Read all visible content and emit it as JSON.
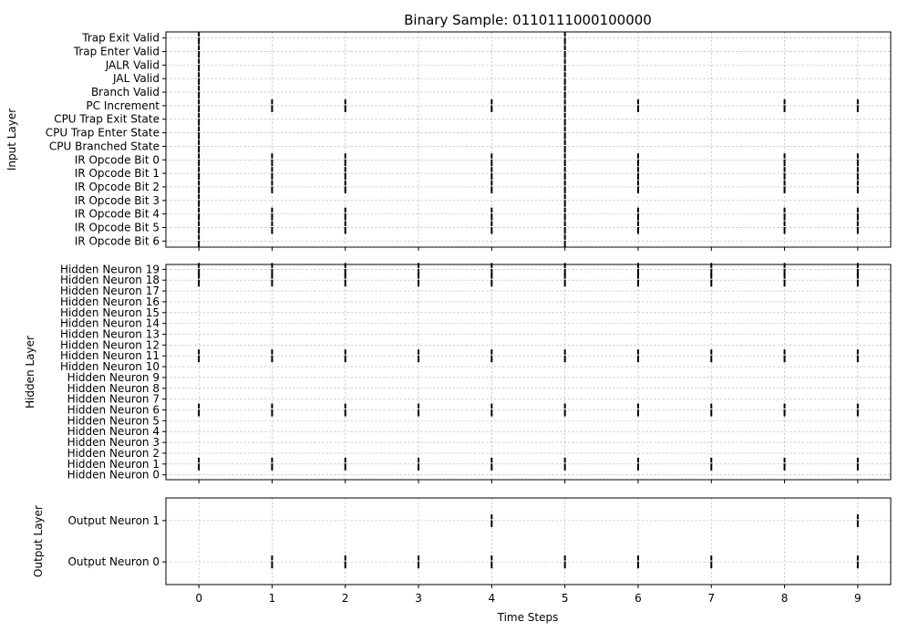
{
  "chart_data": {
    "type": "scatter",
    "title": "Binary Sample: 0110111000100000",
    "xlabel": "Time Steps",
    "x_ticks": [
      0,
      1,
      2,
      3,
      4,
      5,
      6,
      7,
      8,
      9
    ],
    "xlim": [
      -0.45,
      9.45
    ],
    "grid": true,
    "marker": "vertical-line",
    "panels": [
      {
        "name": "input",
        "ylabel": "Input Layer",
        "neurons": [
          "IR Opcode Bit 6",
          "IR Opcode Bit 5",
          "IR Opcode Bit 4",
          "IR Opcode Bit 3",
          "IR Opcode Bit 2",
          "IR Opcode Bit 1",
          "IR Opcode Bit 0",
          "CPU Branched State",
          "CPU Trap Enter State",
          "CPU Trap Exit State",
          "PC Increment",
          "Branch Valid",
          "JAL Valid",
          "JALR Valid",
          "Trap Enter Valid",
          "Trap Exit Valid"
        ],
        "ylim": [
          -0.45,
          15.45
        ],
        "spikes": [
          {
            "neuron": "IR Opcode Bit 6",
            "times": [
              0,
              5
            ]
          },
          {
            "neuron": "IR Opcode Bit 5",
            "times": [
              0,
              1,
              2,
              4,
              5,
              6,
              8,
              9
            ]
          },
          {
            "neuron": "IR Opcode Bit 4",
            "times": [
              0,
              1,
              2,
              4,
              5,
              6,
              8,
              9
            ]
          },
          {
            "neuron": "IR Opcode Bit 3",
            "times": [
              0,
              5
            ]
          },
          {
            "neuron": "IR Opcode Bit 2",
            "times": [
              0,
              1,
              2,
              4,
              5,
              6,
              8,
              9
            ]
          },
          {
            "neuron": "IR Opcode Bit 1",
            "times": [
              0,
              1,
              2,
              4,
              5,
              6,
              8,
              9
            ]
          },
          {
            "neuron": "IR Opcode Bit 0",
            "times": [
              0,
              1,
              2,
              4,
              5,
              6,
              8,
              9
            ]
          },
          {
            "neuron": "CPU Branched State",
            "times": [
              0,
              5
            ]
          },
          {
            "neuron": "CPU Trap Enter State",
            "times": [
              0,
              5
            ]
          },
          {
            "neuron": "CPU Trap Exit State",
            "times": [
              0,
              5
            ]
          },
          {
            "neuron": "PC Increment",
            "times": [
              0,
              1,
              2,
              4,
              5,
              6,
              8,
              9
            ]
          },
          {
            "neuron": "Branch Valid",
            "times": [
              0,
              5
            ]
          },
          {
            "neuron": "JAL Valid",
            "times": [
              0,
              5
            ]
          },
          {
            "neuron": "JALR Valid",
            "times": [
              0,
              5
            ]
          },
          {
            "neuron": "Trap Enter Valid",
            "times": [
              0,
              5
            ]
          },
          {
            "neuron": "Trap Exit Valid",
            "times": [
              0,
              5
            ]
          }
        ]
      },
      {
        "name": "hidden",
        "ylabel": "Hidden Layer",
        "neurons": [
          "Hidden Neuron 0",
          "Hidden Neuron 1",
          "Hidden Neuron 2",
          "Hidden Neuron 3",
          "Hidden Neuron 4",
          "Hidden Neuron 5",
          "Hidden Neuron 6",
          "Hidden Neuron 7",
          "Hidden Neuron 8",
          "Hidden Neuron 9",
          "Hidden Neuron 10",
          "Hidden Neuron 11",
          "Hidden Neuron 12",
          "Hidden Neuron 13",
          "Hidden Neuron 14",
          "Hidden Neuron 15",
          "Hidden Neuron 16",
          "Hidden Neuron 17",
          "Hidden Neuron 18",
          "Hidden Neuron 19"
        ],
        "ylim": [
          -0.45,
          19.45
        ],
        "spikes": [
          {
            "neuron": "Hidden Neuron 1",
            "times": [
              0,
              1,
              2,
              3,
              4,
              5,
              6,
              7,
              8,
              9
            ]
          },
          {
            "neuron": "Hidden Neuron 6",
            "times": [
              0,
              1,
              2,
              3,
              4,
              5,
              6,
              7,
              8,
              9
            ]
          },
          {
            "neuron": "Hidden Neuron 11",
            "times": [
              0,
              1,
              2,
              3,
              4,
              5,
              6,
              7,
              8,
              9
            ]
          },
          {
            "neuron": "Hidden Neuron 18",
            "times": [
              0,
              1,
              2,
              3,
              4,
              5,
              6,
              7,
              8,
              9
            ]
          },
          {
            "neuron": "Hidden Neuron 19",
            "times": [
              0,
              1,
              2,
              3,
              4,
              5,
              6,
              7,
              8,
              9
            ]
          }
        ]
      },
      {
        "name": "output",
        "ylabel": "Output Layer",
        "neurons": [
          "Output Neuron 0",
          "Output Neuron 1"
        ],
        "ylim": [
          -0.55,
          1.55
        ],
        "spikes": [
          {
            "neuron": "Output Neuron 0",
            "times": [
              1,
              2,
              3,
              4,
              5,
              6,
              7,
              9
            ]
          },
          {
            "neuron": "Output Neuron 1",
            "times": [
              4,
              9
            ]
          }
        ]
      }
    ]
  }
}
